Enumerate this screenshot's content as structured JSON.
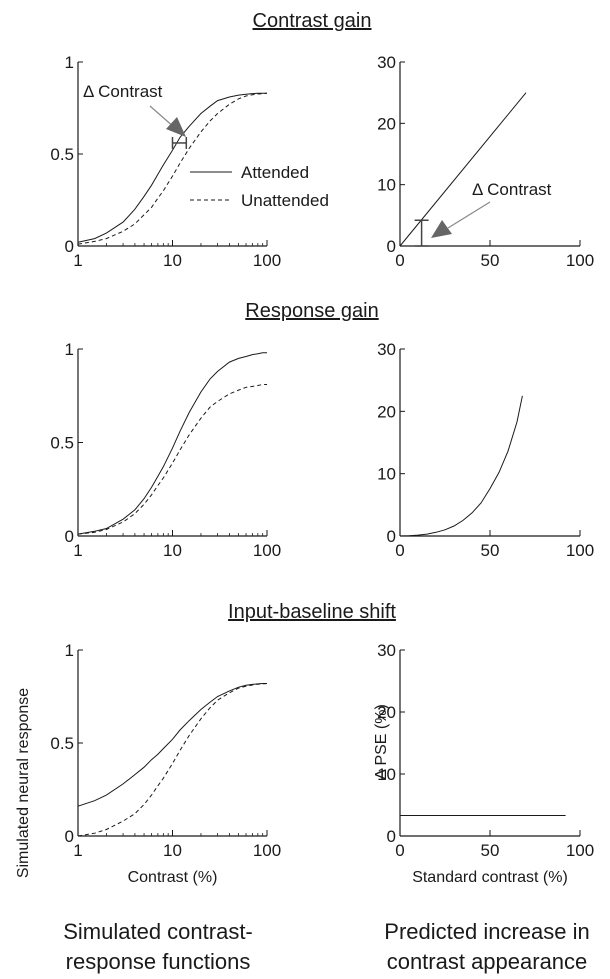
{
  "sections": [
    {
      "title": "Contrast gain"
    },
    {
      "title": "Response gain"
    },
    {
      "title": "Input-baseline shift"
    }
  ],
  "bottom_labels": {
    "left": [
      "Simulated contrast-",
      "response functions"
    ],
    "right": [
      "Predicted increase in",
      "contrast appearance"
    ]
  },
  "chart_data": [
    {
      "id": "contrast-gain-crf",
      "type": "line",
      "xscale": "log",
      "xlim": [
        1,
        100
      ],
      "ylim": [
        0,
        1
      ],
      "xticks": [
        "1",
        "10",
        "100"
      ],
      "yticks": [
        "0",
        "0.5",
        "1"
      ],
      "xlabel": "",
      "ylabel": "",
      "legend": {
        "placement": "right",
        "entries": [
          "Attended",
          "Unattended"
        ]
      },
      "annotation": {
        "text": "Δ Contrast",
        "x_from": 10,
        "x_to": 14,
        "y": 0.56
      },
      "series": [
        {
          "name": "Attended",
          "style": "solid",
          "x": [
            1,
            1.5,
            2,
            3,
            4,
            5,
            6,
            7,
            8,
            10,
            12,
            15,
            20,
            25,
            30,
            40,
            50,
            60,
            70,
            80,
            90,
            100
          ],
          "y": [
            0.02,
            0.04,
            0.07,
            0.13,
            0.2,
            0.27,
            0.33,
            0.39,
            0.44,
            0.52,
            0.59,
            0.65,
            0.72,
            0.76,
            0.79,
            0.81,
            0.82,
            0.825,
            0.828,
            0.83,
            0.83,
            0.83
          ]
        },
        {
          "name": "Unattended",
          "style": "dashed",
          "x": [
            1,
            1.5,
            2,
            3,
            4,
            5,
            6,
            7,
            8,
            10,
            12,
            15,
            20,
            25,
            30,
            40,
            50,
            60,
            70,
            80,
            90,
            100
          ],
          "y": [
            0.01,
            0.025,
            0.04,
            0.08,
            0.12,
            0.17,
            0.21,
            0.26,
            0.3,
            0.38,
            0.45,
            0.53,
            0.62,
            0.68,
            0.72,
            0.77,
            0.8,
            0.815,
            0.822,
            0.826,
            0.828,
            0.83
          ]
        }
      ]
    },
    {
      "id": "contrast-gain-pse",
      "type": "line",
      "xlim": [
        0,
        100
      ],
      "ylim": [
        0,
        30
      ],
      "xticks": [
        "0",
        "50",
        "100"
      ],
      "yticks": [
        "0",
        "10",
        "20",
        "30"
      ],
      "xlabel": "",
      "ylabel": "",
      "annotation": {
        "text": "Δ Contrast",
        "x": 12,
        "y_from": 0,
        "y_to": 4.2
      },
      "series": [
        {
          "style": "solid",
          "x": [
            0,
            70
          ],
          "y": [
            0,
            25
          ]
        }
      ]
    },
    {
      "id": "response-gain-crf",
      "type": "line",
      "xscale": "log",
      "xlim": [
        1,
        100
      ],
      "ylim": [
        0,
        1
      ],
      "xticks": [
        "1",
        "10",
        "100"
      ],
      "yticks": [
        "0",
        "0.5",
        "1"
      ],
      "xlabel": "",
      "ylabel": "",
      "series": [
        {
          "name": "Attended",
          "style": "solid",
          "x": [
            1,
            1.5,
            2,
            3,
            4,
            5,
            6,
            7,
            8,
            10,
            12,
            15,
            20,
            25,
            30,
            40,
            50,
            60,
            70,
            80,
            90,
            100
          ],
          "y": [
            0.01,
            0.025,
            0.04,
            0.09,
            0.14,
            0.2,
            0.26,
            0.32,
            0.37,
            0.47,
            0.56,
            0.66,
            0.77,
            0.84,
            0.88,
            0.93,
            0.95,
            0.96,
            0.97,
            0.975,
            0.98,
            0.98
          ]
        },
        {
          "name": "Unattended",
          "style": "dashed",
          "x": [
            1,
            1.5,
            2,
            3,
            4,
            5,
            6,
            7,
            8,
            10,
            12,
            15,
            20,
            25,
            30,
            40,
            50,
            60,
            70,
            80,
            90,
            100
          ],
          "y": [
            0.01,
            0.02,
            0.035,
            0.075,
            0.12,
            0.17,
            0.22,
            0.27,
            0.31,
            0.39,
            0.46,
            0.54,
            0.63,
            0.69,
            0.72,
            0.76,
            0.78,
            0.795,
            0.8,
            0.805,
            0.81,
            0.81
          ]
        }
      ]
    },
    {
      "id": "response-gain-pse",
      "type": "line",
      "xlim": [
        0,
        100
      ],
      "ylim": [
        0,
        30
      ],
      "xticks": [
        "0",
        "50",
        "100"
      ],
      "yticks": [
        "0",
        "10",
        "20",
        "30"
      ],
      "xlabel": "",
      "ylabel": "",
      "series": [
        {
          "style": "solid",
          "x": [
            0,
            5,
            10,
            15,
            20,
            25,
            30,
            35,
            40,
            45,
            50,
            55,
            60,
            65,
            68
          ],
          "y": [
            0,
            0.05,
            0.15,
            0.3,
            0.6,
            1.0,
            1.6,
            2.5,
            3.7,
            5.3,
            7.6,
            10.2,
            13.6,
            18.3,
            22.5
          ]
        }
      ]
    },
    {
      "id": "baseline-shift-crf",
      "type": "line",
      "xscale": "log",
      "xlim": [
        1,
        100
      ],
      "ylim": [
        0,
        1
      ],
      "xticks": [
        "1",
        "10",
        "100"
      ],
      "yticks": [
        "0",
        "0.5",
        "1"
      ],
      "xlabel": "Contrast (%)",
      "ylabel": "Simulated neural response",
      "series": [
        {
          "name": "Attended",
          "style": "solid",
          "x": [
            1,
            1.5,
            2,
            3,
            4,
            5,
            6,
            7,
            8,
            10,
            12,
            15,
            20,
            25,
            30,
            40,
            50,
            60,
            70,
            80,
            90,
            100
          ],
          "y": [
            0.16,
            0.19,
            0.22,
            0.28,
            0.33,
            0.37,
            0.41,
            0.44,
            0.47,
            0.52,
            0.57,
            0.62,
            0.68,
            0.72,
            0.75,
            0.78,
            0.8,
            0.81,
            0.815,
            0.818,
            0.82,
            0.82
          ]
        },
        {
          "name": "Unattended",
          "style": "dashed",
          "x": [
            1,
            1.5,
            2,
            3,
            4,
            5,
            6,
            7,
            8,
            10,
            12,
            15,
            20,
            25,
            30,
            40,
            50,
            60,
            70,
            80,
            90,
            100
          ],
          "y": [
            0.0,
            0.015,
            0.035,
            0.08,
            0.12,
            0.17,
            0.22,
            0.27,
            0.31,
            0.39,
            0.46,
            0.54,
            0.63,
            0.69,
            0.73,
            0.77,
            0.795,
            0.805,
            0.812,
            0.816,
            0.818,
            0.82
          ]
        }
      ]
    },
    {
      "id": "baseline-shift-pse",
      "type": "line",
      "xlim": [
        0,
        100
      ],
      "ylim": [
        0,
        30
      ],
      "xticks": [
        "0",
        "50",
        "100"
      ],
      "yticks": [
        "0",
        "10",
        "20",
        "30"
      ],
      "xlabel": "Standard contrast (%)",
      "ylabel": "Δ PSE (%)",
      "series": [
        {
          "style": "solid",
          "x": [
            0,
            92
          ],
          "y": [
            3.3,
            3.3
          ]
        }
      ]
    }
  ]
}
